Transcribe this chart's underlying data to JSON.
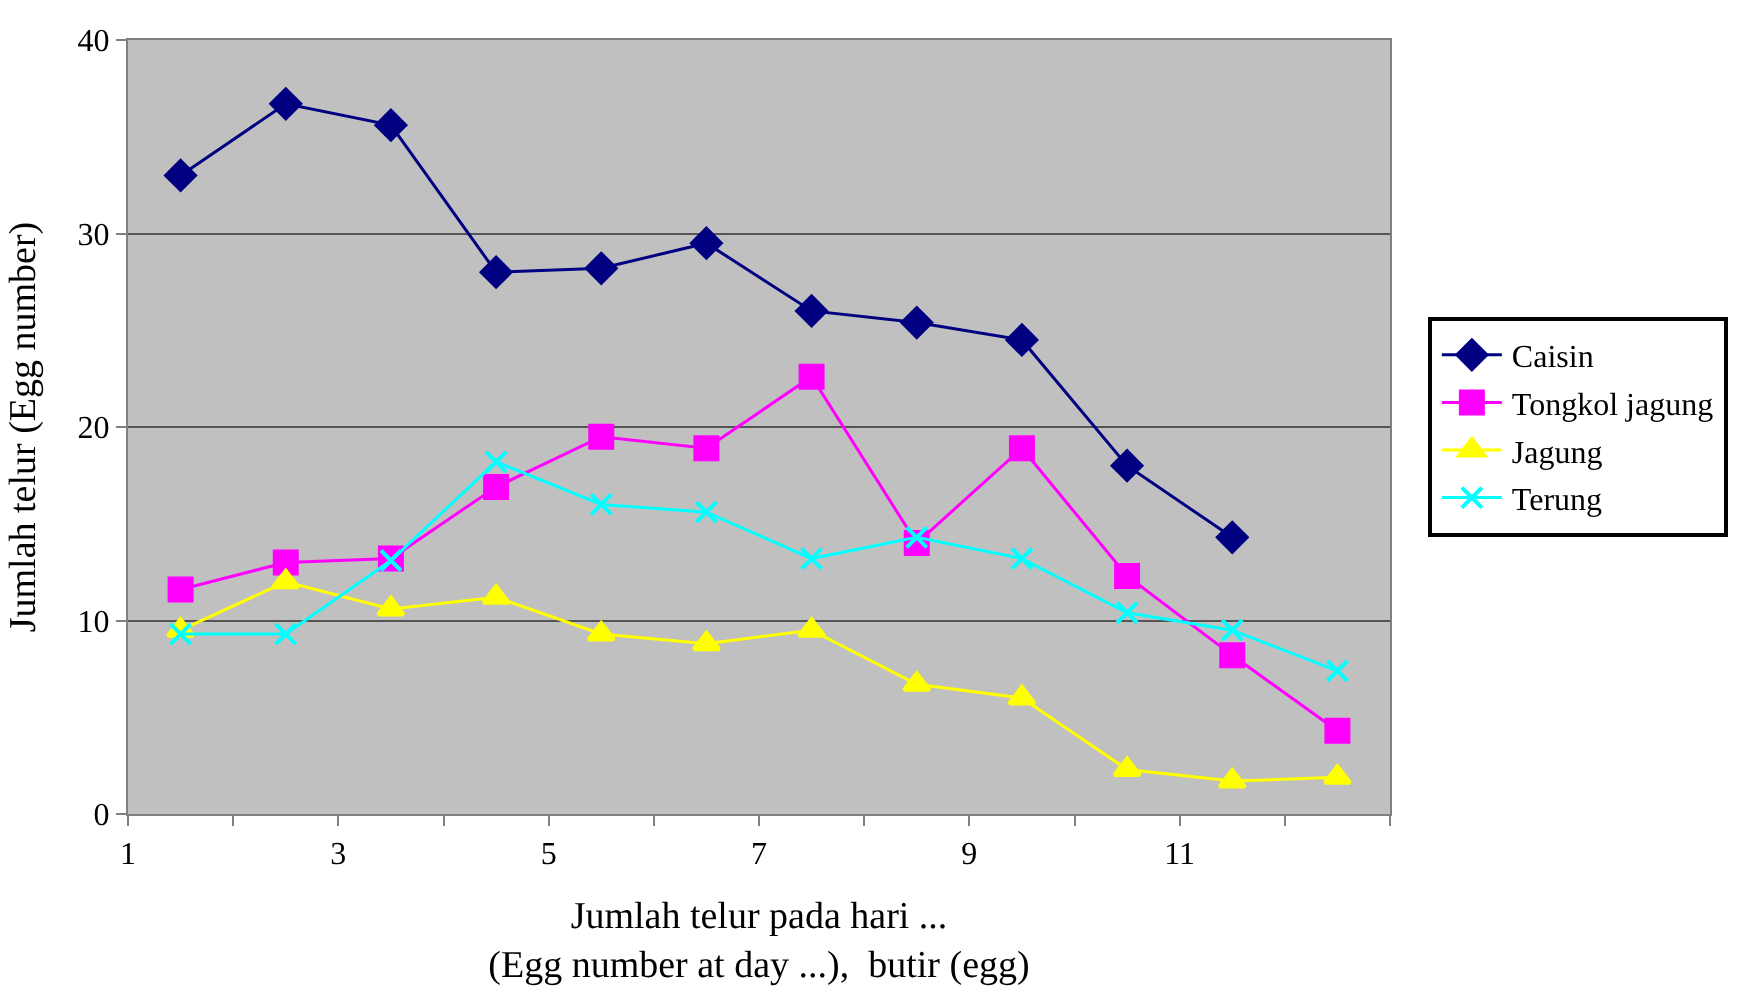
{
  "chart_data": {
    "type": "line",
    "xlabel": "Jumlah telur pada hari ...\n(Egg number at day ...),  butir (egg)",
    "ylabel": "Jumlah telur (Egg number)",
    "x": [
      1.5,
      2.5,
      3.5,
      4.5,
      5.5,
      6.5,
      7.5,
      8.5,
      9.5,
      10.5,
      11.5,
      12.5
    ],
    "series": [
      {
        "name": "Caisin",
        "color": "#000080",
        "marker": "diamond",
        "values": [
          33,
          36.7,
          35.6,
          28,
          28.2,
          29.5,
          26,
          25.4,
          24.5,
          18,
          14.3,
          null
        ]
      },
      {
        "name": "Tongkol jagung",
        "color": "#ff00ff",
        "marker": "square",
        "values": [
          11.6,
          13,
          13.2,
          16.9,
          19.5,
          18.9,
          22.6,
          14,
          18.9,
          12.3,
          8.2,
          4.3
        ]
      },
      {
        "name": "Jagung",
        "color": "#ffff00",
        "marker": "triangle",
        "values": [
          9.5,
          12,
          10.6,
          11.2,
          9.3,
          8.8,
          9.5,
          6.7,
          6,
          2.3,
          1.7,
          1.9
        ]
      },
      {
        "name": "Terung",
        "color": "#00ffff",
        "marker": "cross",
        "values": [
          9.3,
          9.3,
          13.1,
          18.2,
          16,
          15.6,
          13.2,
          14.3,
          13.2,
          10.4,
          9.5,
          7.4
        ]
      }
    ],
    "xlim": [
      1,
      13
    ],
    "xticks": [
      1,
      {
        "value": 2,
        "label": null
      },
      3,
      {
        "value": 4,
        "label": null
      },
      5,
      {
        "value": 6,
        "label": null
      },
      7,
      {
        "value": 8,
        "label": null
      },
      9,
      {
        "value": 10,
        "label": null
      },
      11,
      {
        "value": 12,
        "label": null
      },
      {
        "value": 13,
        "label": null
      }
    ],
    "ylim": [
      0,
      40
    ],
    "yticks": [
      0,
      10,
      20,
      30,
      40
    ],
    "grid": "y",
    "legend": "right"
  }
}
